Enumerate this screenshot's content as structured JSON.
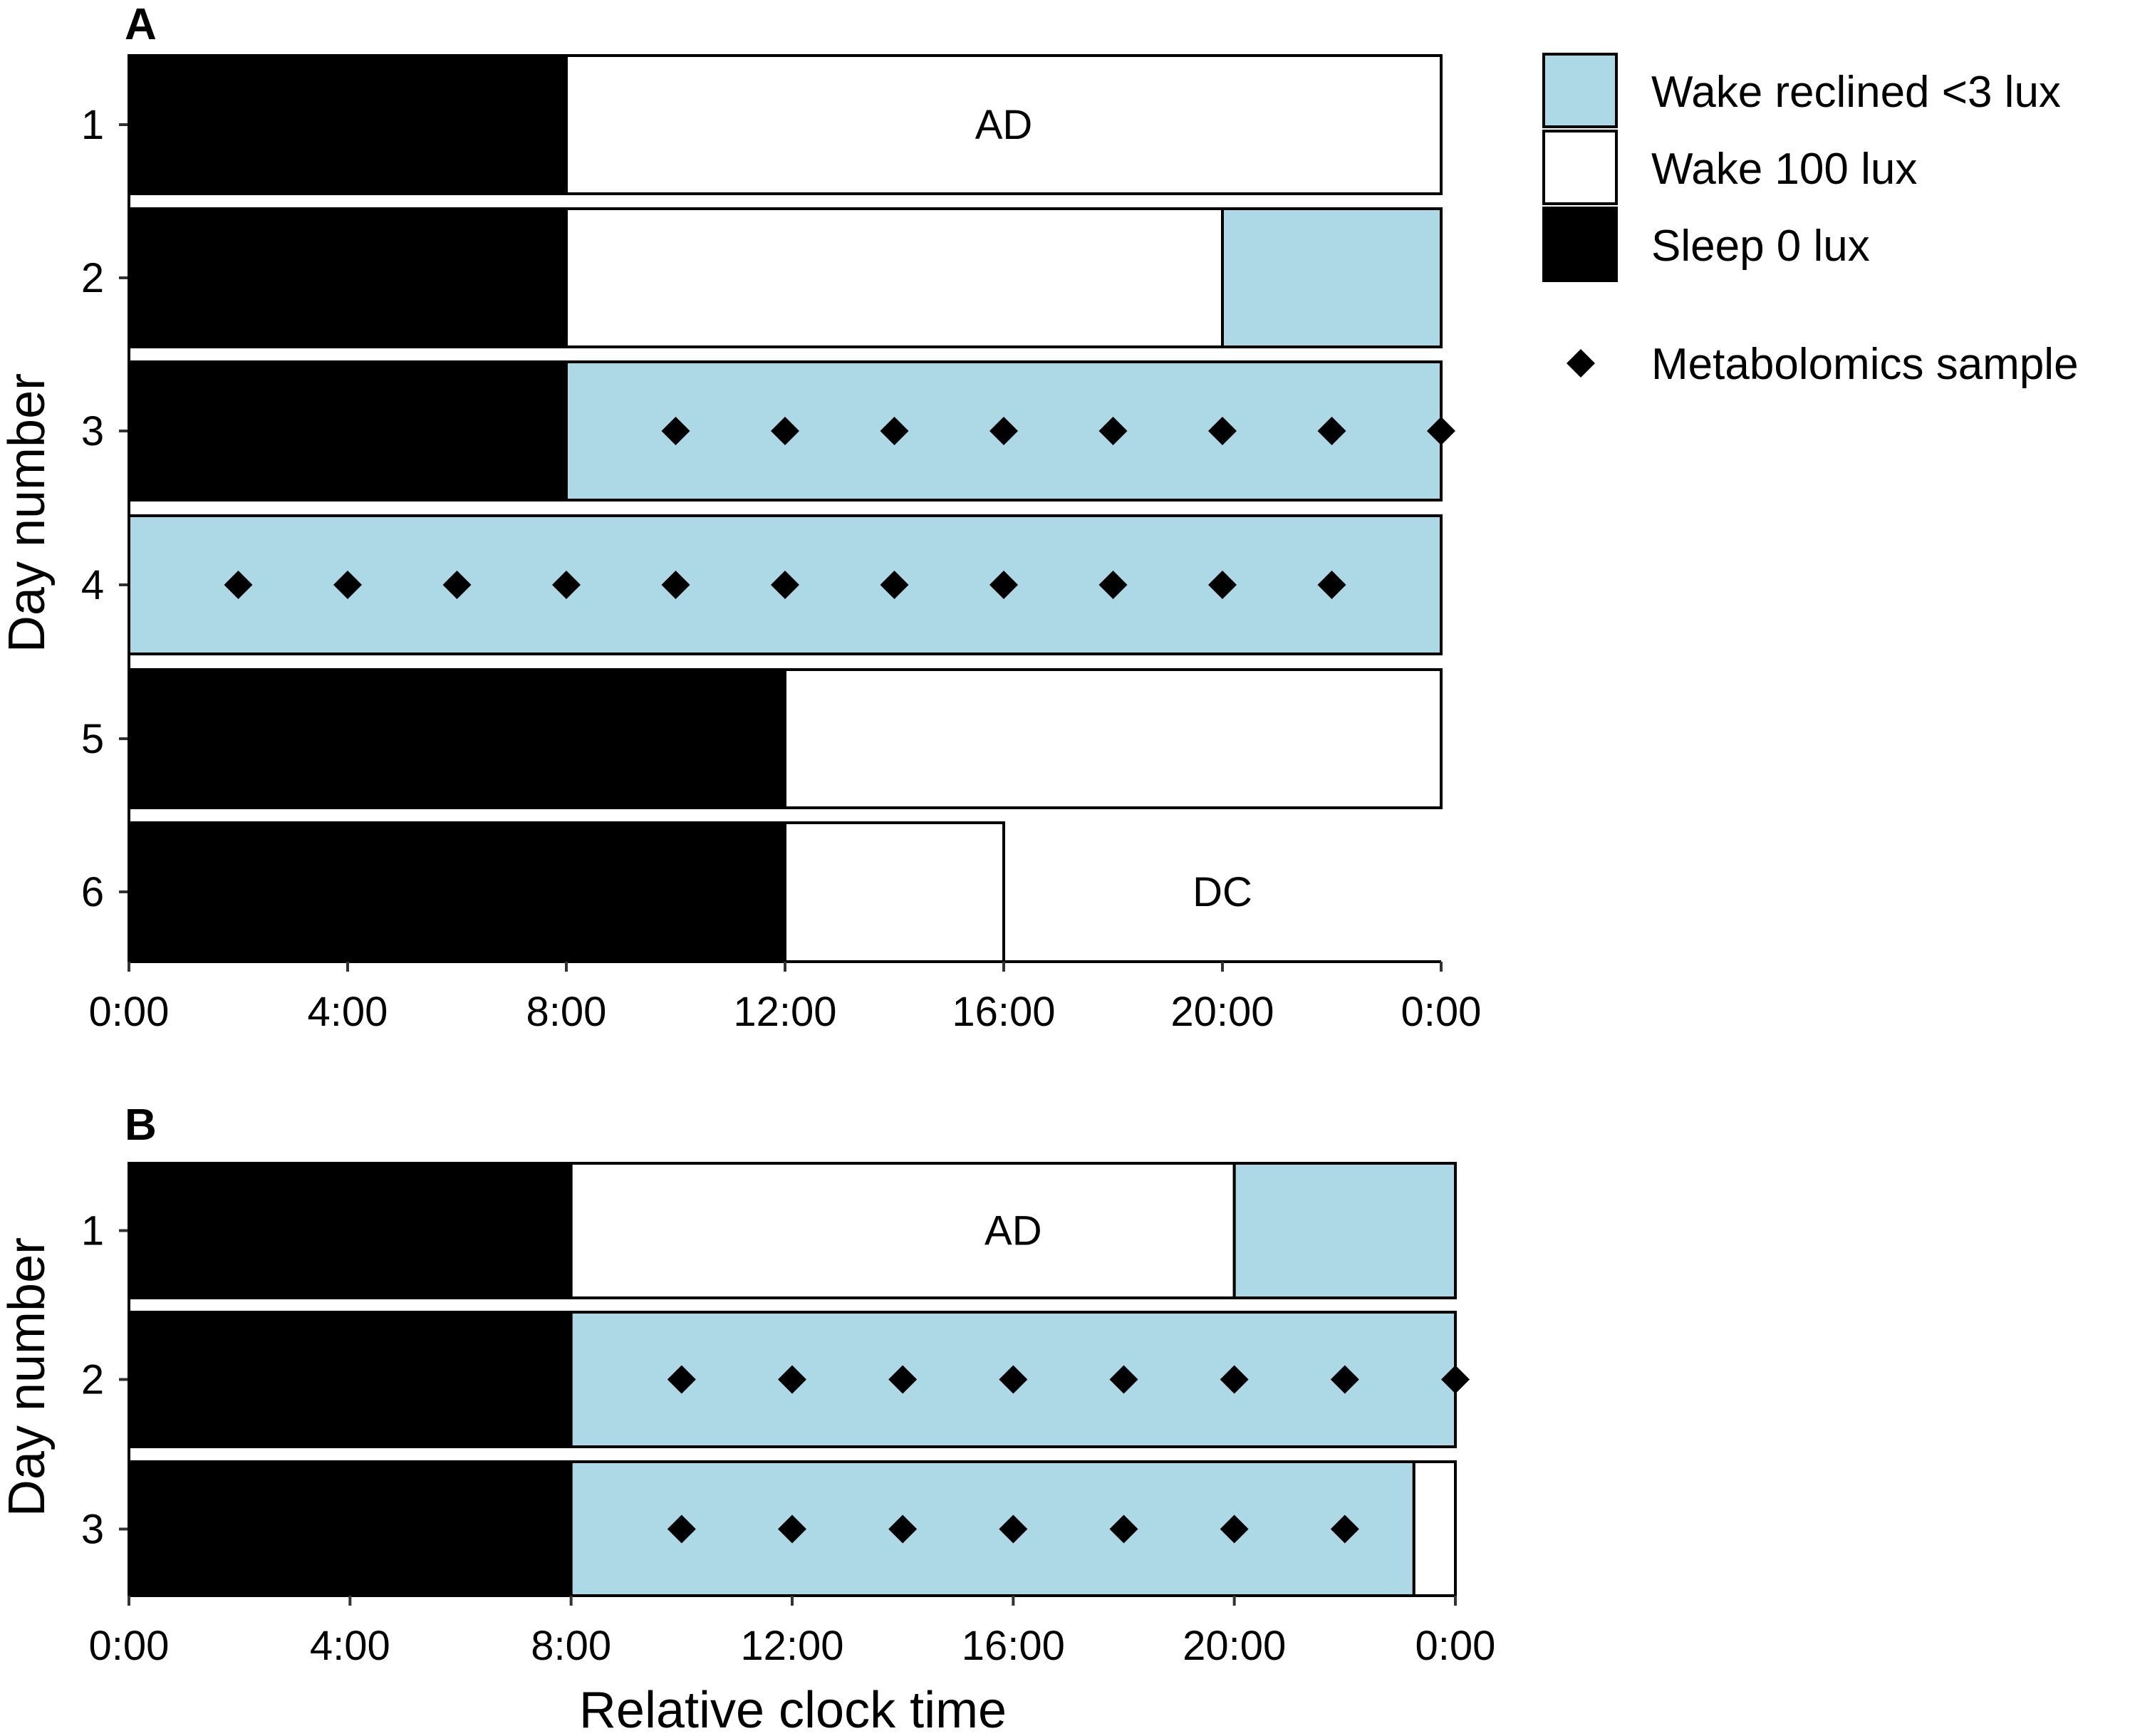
{
  "chart_data": [
    {
      "panel": "A",
      "type": "bar",
      "xlabel": "",
      "ylabel": "Day number",
      "x_unit": "hours",
      "xlim": [
        0,
        24
      ],
      "x_ticks": [
        0,
        4,
        8,
        12,
        16,
        20,
        24
      ],
      "x_tick_labels": [
        "0:00",
        "4:00",
        "8:00",
        "12:00",
        "16:00",
        "20:00",
        "0:00"
      ],
      "days": [
        {
          "label": "1",
          "segments": [
            {
              "start": 0,
              "end": 8,
              "state": "sleep"
            },
            {
              "start": 8,
              "end": 24,
              "state": "wake100"
            }
          ],
          "samples": [],
          "annotation": {
            "text": "AD",
            "x": 16
          }
        },
        {
          "label": "2",
          "segments": [
            {
              "start": 0,
              "end": 8,
              "state": "sleep"
            },
            {
              "start": 8,
              "end": 20,
              "state": "wake100"
            },
            {
              "start": 20,
              "end": 24,
              "state": "reclined"
            }
          ],
          "samples": []
        },
        {
          "label": "3",
          "segments": [
            {
              "start": 0,
              "end": 8,
              "state": "sleep"
            },
            {
              "start": 8,
              "end": 24,
              "state": "reclined"
            }
          ],
          "samples": [
            10,
            12,
            14,
            16,
            18,
            20,
            22,
            24
          ]
        },
        {
          "label": "4",
          "segments": [
            {
              "start": 0,
              "end": 24,
              "state": "reclined"
            }
          ],
          "samples": [
            2,
            4,
            6,
            8,
            10,
            12,
            14,
            16,
            18,
            20,
            22
          ]
        },
        {
          "label": "5",
          "segments": [
            {
              "start": 0,
              "end": 12,
              "state": "sleep"
            },
            {
              "start": 12,
              "end": 24,
              "state": "wake100"
            }
          ],
          "samples": []
        },
        {
          "label": "6",
          "segments": [
            {
              "start": 0,
              "end": 12,
              "state": "sleep"
            },
            {
              "start": 12,
              "end": 16,
              "state": "wake100"
            }
          ],
          "samples": [],
          "annotation": {
            "text": "DC",
            "x": 20
          }
        }
      ]
    },
    {
      "panel": "B",
      "type": "bar",
      "xlabel": "Relative clock time",
      "ylabel": "Day number",
      "x_unit": "hours",
      "xlim": [
        0,
        24
      ],
      "x_ticks": [
        0,
        4,
        8,
        12,
        16,
        20,
        24
      ],
      "x_tick_labels": [
        "0:00",
        "4:00",
        "8:00",
        "12:00",
        "16:00",
        "20:00",
        "0:00"
      ],
      "days": [
        {
          "label": "1",
          "segments": [
            {
              "start": 0,
              "end": 8,
              "state": "sleep"
            },
            {
              "start": 8,
              "end": 20,
              "state": "wake100"
            },
            {
              "start": 20,
              "end": 24,
              "state": "reclined"
            }
          ],
          "samples": [],
          "annotation": {
            "text": "AD",
            "x": 16
          }
        },
        {
          "label": "2",
          "segments": [
            {
              "start": 0,
              "end": 8,
              "state": "sleep"
            },
            {
              "start": 8,
              "end": 24,
              "state": "reclined"
            }
          ],
          "samples": [
            10,
            12,
            14,
            16,
            18,
            20,
            22,
            24
          ]
        },
        {
          "label": "3",
          "segments": [
            {
              "start": 0,
              "end": 8,
              "state": "sleep"
            },
            {
              "start": 8,
              "end": 23.25,
              "state": "reclined"
            },
            {
              "start": 23.25,
              "end": 24,
              "state": "wake100"
            }
          ],
          "samples": [
            10,
            12,
            14,
            16,
            18,
            20,
            22
          ]
        }
      ]
    }
  ],
  "legend": {
    "items": [
      {
        "key": "reclined",
        "label": "Wake reclined <3 lux",
        "color": "#add8e6"
      },
      {
        "key": "wake100",
        "label": "Wake 100 lux",
        "color": "#ffffff"
      },
      {
        "key": "sleep",
        "label": "Sleep 0 lux",
        "color": "#000000"
      }
    ],
    "marker_label": "Metabolomics sample",
    "placement": "right"
  },
  "colors": {
    "sleep": "#000000",
    "wake100": "#ffffff",
    "reclined": "#add8e6",
    "stroke": "#000000"
  }
}
